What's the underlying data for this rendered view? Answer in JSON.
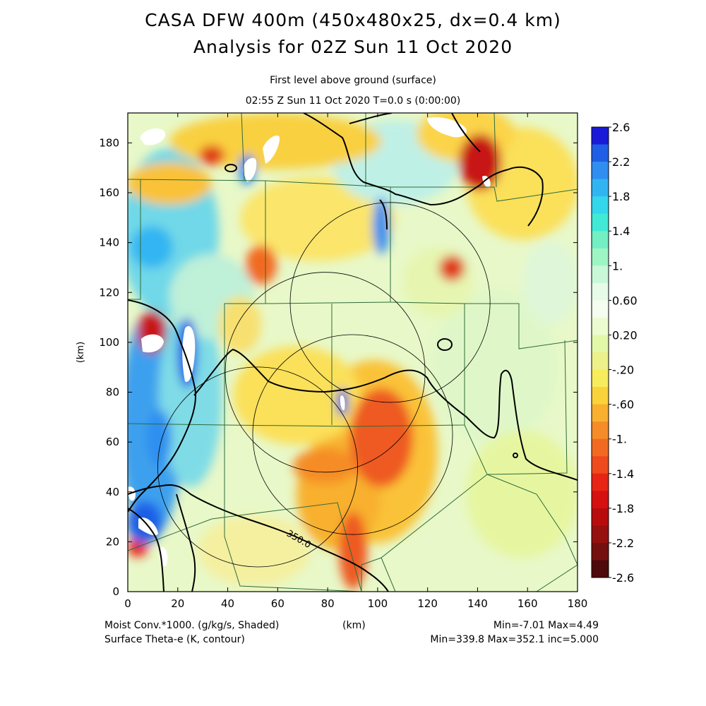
{
  "title": "CASA DFW 400m (450x480x25, dx=0.4 km)",
  "subtitle": "Analysis for 02Z Sun 11 Oct 2020",
  "level_label": "First level above ground (surface)",
  "time_label": "02:55 Z Sun 11 Oct 2020    T=0.0 s (0:00:00)",
  "footer": {
    "shaded_field": "Moist Conv.*1000. (g/kg/s, Shaded)",
    "contour_field": "Surface Theta-e (K, contour)",
    "shaded_stats": "Min=-7.01 Max=4.49",
    "contour_stats": "Min=339.8 Max=352.1 inc=5.000"
  },
  "chart_data": {
    "type": "heatmap",
    "xlabel": "(km)",
    "ylabel": "(km)",
    "xlim": [
      0,
      180
    ],
    "ylim": [
      0,
      192
    ],
    "x_ticks": [
      0,
      20,
      40,
      60,
      80,
      100,
      120,
      140,
      160,
      180
    ],
    "y_ticks": [
      0,
      20,
      40,
      60,
      80,
      100,
      120,
      140,
      160,
      180
    ],
    "contour_label": "350.0",
    "colorbar": {
      "labels": [
        "2.6",
        "2.2",
        "1.8",
        "1.4",
        "1.",
        "0.60",
        "0.20",
        "-.20",
        "-.60",
        "-1.",
        "-1.4",
        "-1.8",
        "-2.2",
        "-2.6"
      ],
      "colors": [
        "#1a1ad9",
        "#1f5fe6",
        "#2f8ff0",
        "#31b5f2",
        "#34d6ec",
        "#40ead6",
        "#72f0c4",
        "#9ef5c4",
        "#c8f8d8",
        "#e6fbe8",
        "#f5fdf0",
        "#ecfcd0",
        "#e2f8a8",
        "#eef08a",
        "#f7ec5c",
        "#fad23a",
        "#f8b02e",
        "#f58c28",
        "#f26a22",
        "#ee4a1c",
        "#e82414",
        "#d61010",
        "#b80c0c",
        "#961010",
        "#741010",
        "#4e0a0a"
      ]
    },
    "radar_circles": [
      {
        "cx": 52,
        "cy": 50,
        "r": 40
      },
      {
        "cx": 79,
        "cy": 88,
        "r": 40
      },
      {
        "cx": 90,
        "cy": 63,
        "r": 40
      },
      {
        "cx": 105,
        "cy": 116,
        "r": 40
      }
    ]
  }
}
